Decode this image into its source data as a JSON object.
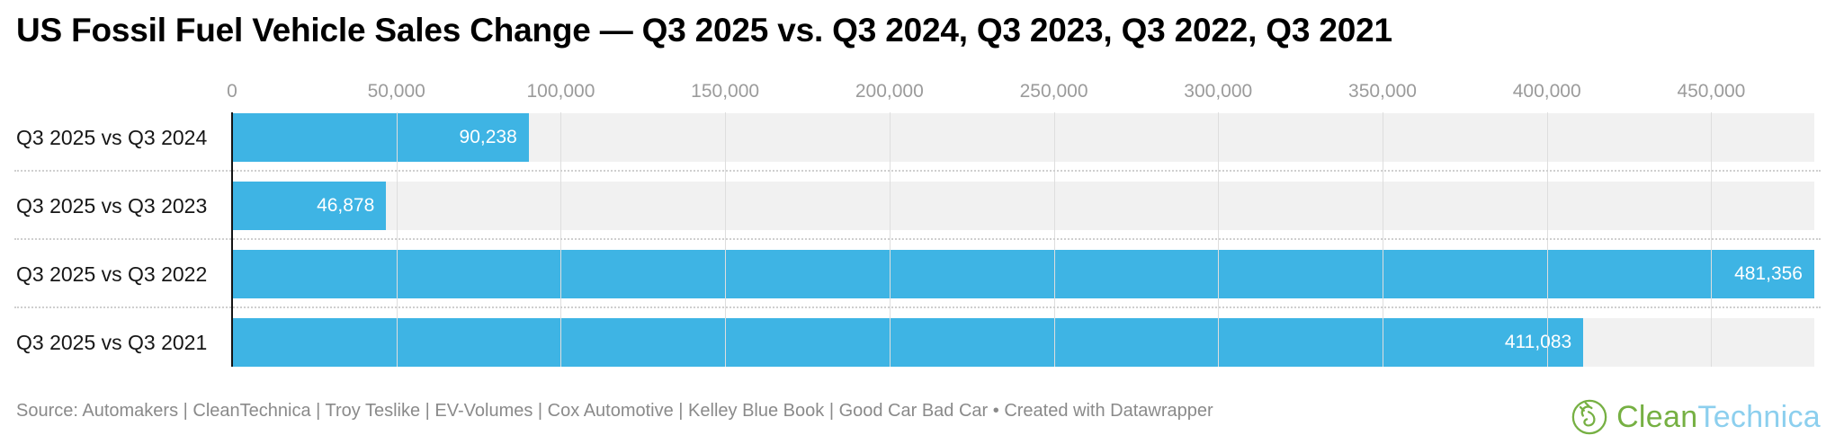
{
  "header": {
    "title": "US Fossil Fuel Vehicle Sales Change — Q3 2025 vs. Q3 2024, Q3 2023, Q3 2022, Q3 2021"
  },
  "chart_data": {
    "type": "bar",
    "orientation": "horizontal",
    "title": "US Fossil Fuel Vehicle Sales Change — Q3 2025 vs. Q3 2024, Q3 2023, Q3 2022, Q3 2021",
    "categories": [
      "Q3 2025 vs Q3 2024",
      "Q3 2025 vs Q3 2023",
      "Q3 2025 vs Q3 2022",
      "Q3 2025 vs Q3 2021"
    ],
    "values": [
      90238,
      46878,
      481356,
      411083
    ],
    "value_labels": [
      "90,238",
      "46,878",
      "481,356",
      "411,083"
    ],
    "x_ticks": [
      0,
      50000,
      100000,
      150000,
      200000,
      250000,
      300000,
      350000,
      400000,
      450000
    ],
    "x_tick_labels": [
      "0",
      "50,000",
      "100,000",
      "150,000",
      "200,000",
      "250,000",
      "300,000",
      "350,000",
      "400,000",
      "450,000"
    ],
    "xlim": [
      0,
      481356
    ],
    "grid": true,
    "legend": "none",
    "bar_color": "#3eb4e4",
    "row_bg_color": "#f1f1f1",
    "value_label_position": "inside-end"
  },
  "footer": {
    "source_text": "Source: Automakers | CleanTechnica | Troy Teslike | EV-Volumes | Cox Automotive | Kelley Blue Book | Good Car Bad Car • Created with Datawrapper",
    "logo": {
      "brand_part1": "Clean",
      "brand_part2": "Technica",
      "green": "#76b043",
      "blue": "#8ccfee"
    }
  },
  "colors": {
    "bar": "#3eb4e4",
    "axis_line": "#141414",
    "gridline": "#dedede",
    "tick_label": "#9b9b9b",
    "row_background": "#f1f1f1",
    "separator": "#cfcfcf",
    "source_text": "#8a8a8a",
    "title_text": "#000000",
    "value_label": "#ffffff"
  }
}
